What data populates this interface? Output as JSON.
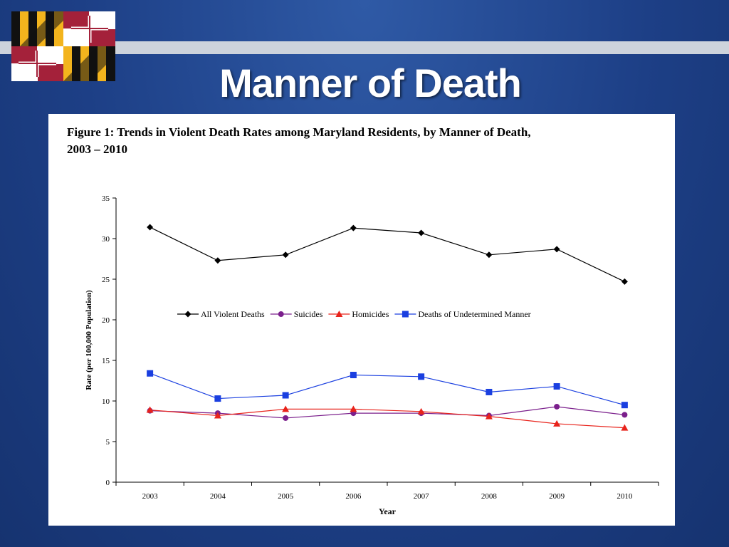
{
  "slide": {
    "title": "Manner of Death"
  },
  "figure": {
    "caption": "Figure 1:  Trends in Violent Death Rates among Maryland Residents, by Manner of Death,\n2003 – 2010"
  },
  "colors": {
    "background": "#1d3f86",
    "all_violent_deaths": "#000000",
    "suicides": "#7b1f8c",
    "homicides": "#e8231b",
    "undetermined": "#1a3fe0",
    "flag_gold": "#f3b41d",
    "flag_red": "#a4213a"
  },
  "chart_data": {
    "type": "line",
    "title": "",
    "xlabel": "Year",
    "ylabel": "Rate (per 100,000 Population)",
    "ylim": [
      0,
      35
    ],
    "yticks": [
      0,
      5,
      10,
      15,
      20,
      25,
      30,
      35
    ],
    "categories": [
      "2003",
      "2004",
      "2005",
      "2006",
      "2007",
      "2008",
      "2009",
      "2010"
    ],
    "grid": false,
    "legend_position": "center",
    "series": [
      {
        "name": "All Violent Deaths",
        "marker": "diamond",
        "color": "#000000",
        "values": [
          31.4,
          27.3,
          28.0,
          31.3,
          30.7,
          28.0,
          28.7,
          24.7
        ]
      },
      {
        "name": "Suicides",
        "marker": "circle",
        "color": "#7b1f8c",
        "values": [
          8.8,
          8.5,
          7.9,
          8.5,
          8.5,
          8.2,
          9.3,
          8.3
        ]
      },
      {
        "name": "Homicides",
        "marker": "triangle",
        "color": "#e8231b",
        "values": [
          8.9,
          8.2,
          9.0,
          9.0,
          8.7,
          8.1,
          7.2,
          6.7
        ]
      },
      {
        "name": "Deaths of Undetermined Manner",
        "marker": "square",
        "color": "#1a3fe0",
        "values": [
          13.4,
          10.3,
          10.7,
          13.2,
          13.0,
          11.1,
          11.8,
          9.5
        ]
      }
    ]
  }
}
